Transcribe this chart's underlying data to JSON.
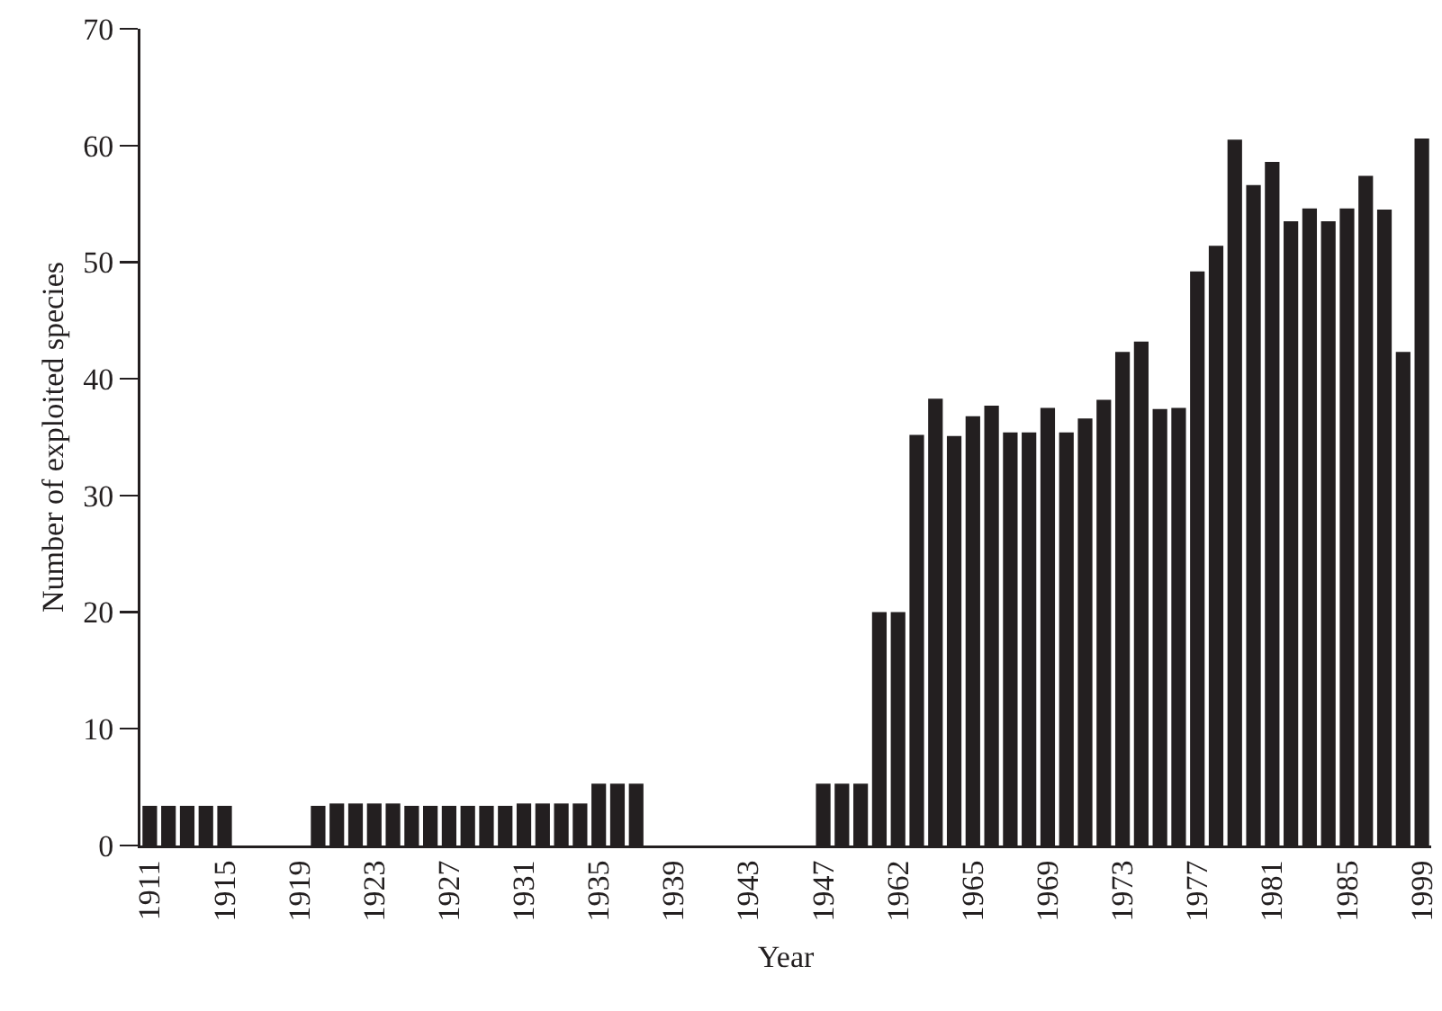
{
  "chart_data": {
    "type": "bar",
    "xlabel": "Year",
    "ylabel": "Number of exploited species",
    "categories": [
      "1911",
      null,
      null,
      null,
      "1915",
      null,
      null,
      null,
      "1919",
      null,
      null,
      null,
      "1923",
      null,
      null,
      null,
      "1927",
      null,
      null,
      null,
      "1931",
      null,
      null,
      null,
      "1935",
      null,
      null,
      null,
      "1939",
      null,
      null,
      null,
      "1943",
      null,
      null,
      null,
      "1947",
      null,
      null,
      null,
      "1962",
      null,
      null,
      null,
      "1965",
      null,
      null,
      null,
      "1969",
      null,
      null,
      null,
      "1973",
      null,
      null,
      null,
      "1977",
      null,
      null,
      null,
      "1981",
      null,
      null,
      null,
      "1985",
      null,
      null,
      null,
      "1999"
    ],
    "values": [
      3.4,
      3.4,
      3.4,
      3.4,
      3.4,
      null,
      null,
      null,
      null,
      3.4,
      3.6,
      3.6,
      3.6,
      3.6,
      3.4,
      3.4,
      3.4,
      3.4,
      3.4,
      3.4,
      3.6,
      3.6,
      3.6,
      3.6,
      5.3,
      5.3,
      5.3,
      null,
      null,
      null,
      null,
      null,
      null,
      null,
      null,
      null,
      5.3,
      5.3,
      5.3,
      20,
      20,
      35.2,
      38.3,
      35.1,
      36.8,
      37.7,
      35.4,
      35.4,
      37.5,
      35.4,
      36.6,
      38.2,
      42.3,
      43.2,
      37.4,
      37.5,
      49.2,
      51.4,
      60.5,
      56.6,
      58.6,
      53.5,
      54.6,
      53.5,
      54.6,
      57.4,
      54.5,
      42.3,
      60.6
    ],
    "color": "#231f20",
    "ylim": [
      0,
      70
    ],
    "yticks": [
      0,
      10,
      20,
      30,
      40,
      50,
      60,
      70
    ],
    "grid": false
  }
}
